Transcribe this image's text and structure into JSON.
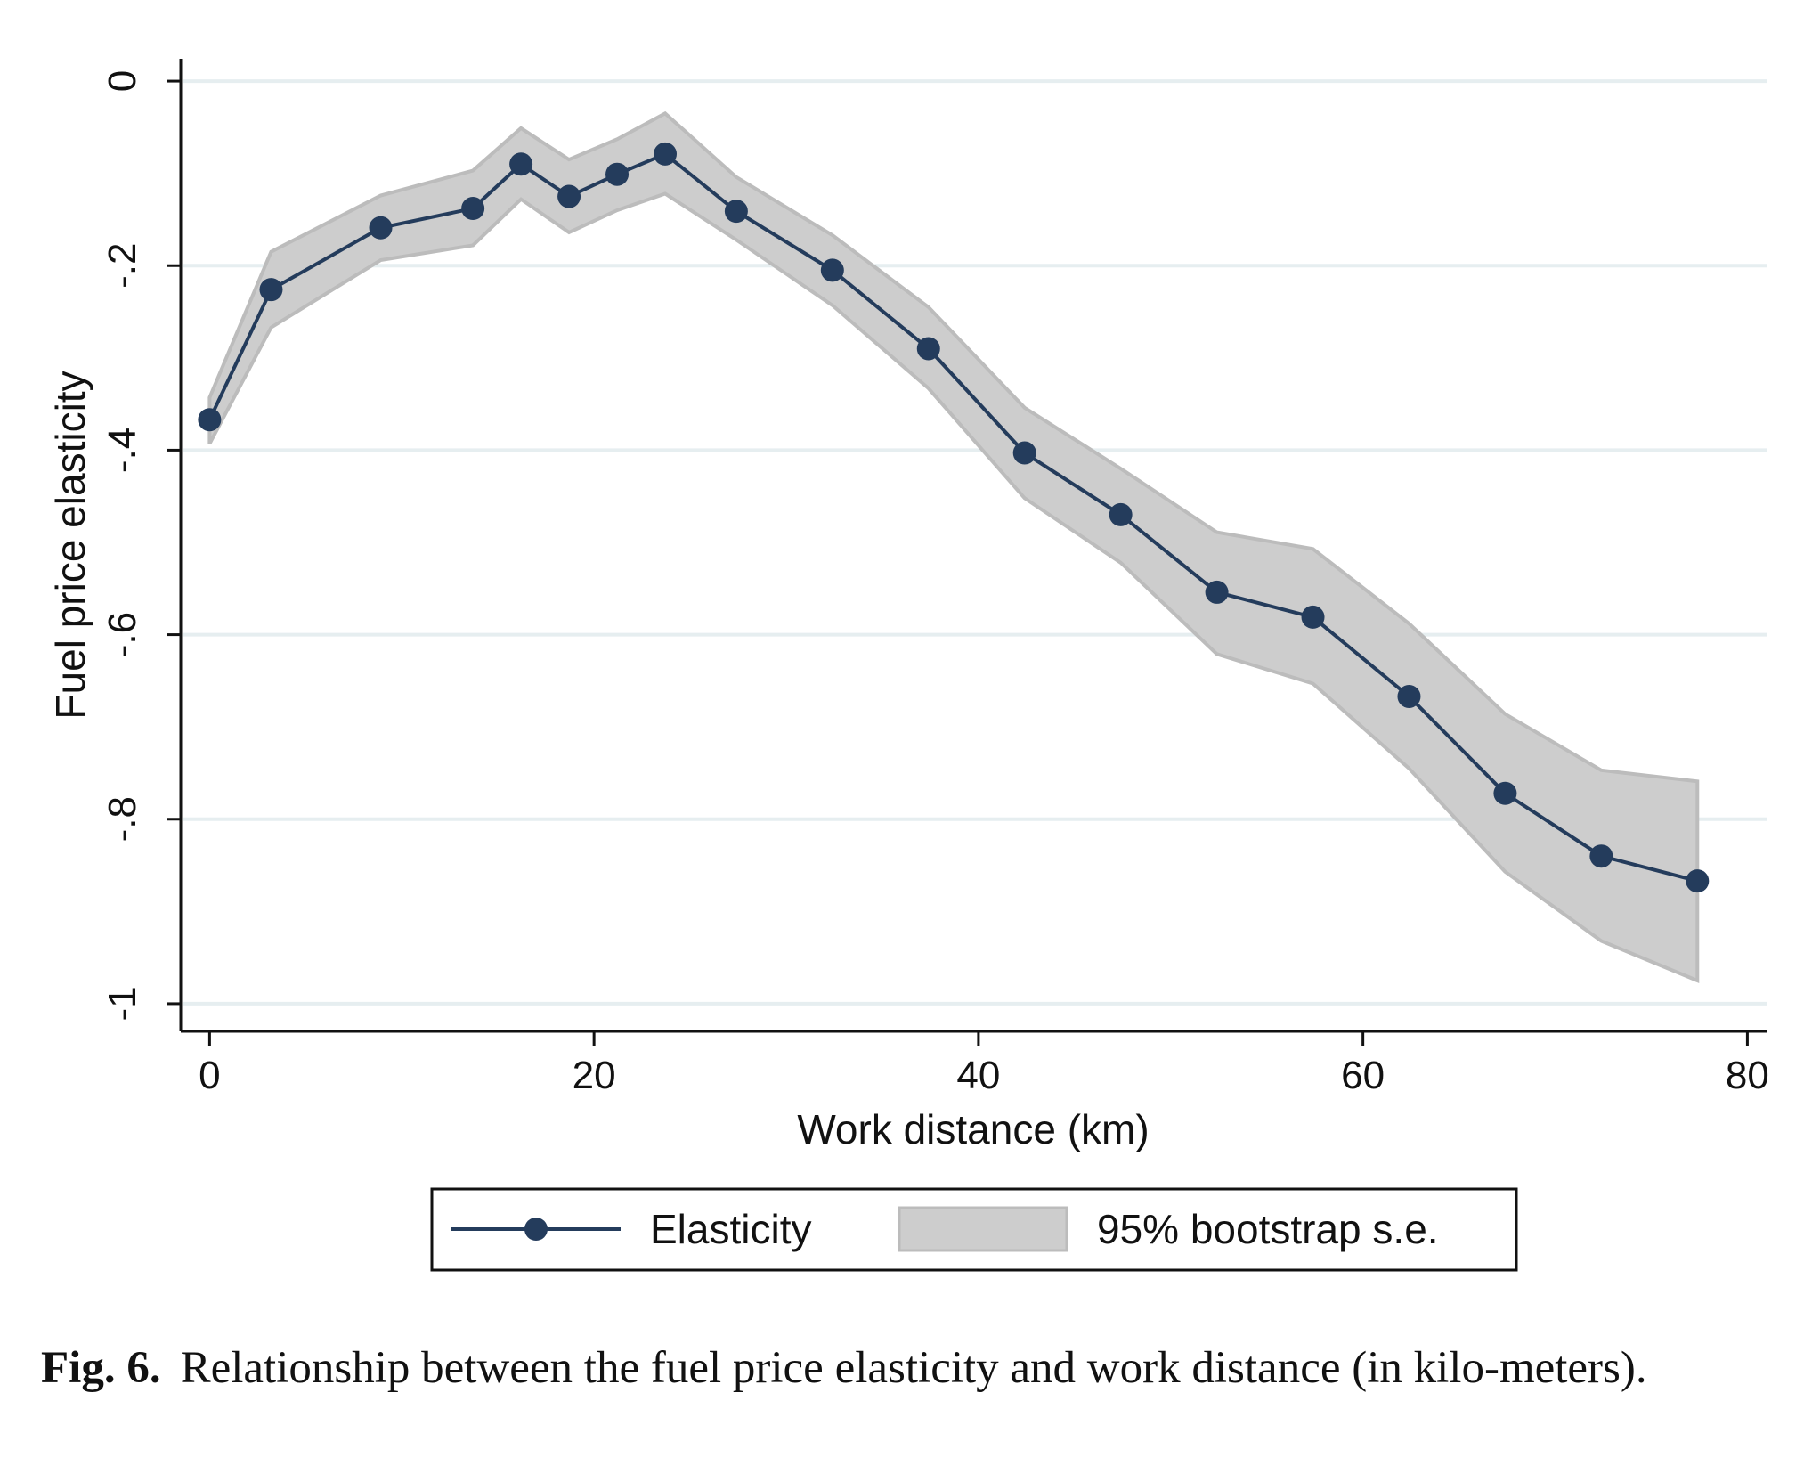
{
  "chart_data": {
    "type": "line",
    "xlabel": "Work distance (km)",
    "ylabel": "Fuel price elasticity",
    "xlim": [
      -1.5,
      81
    ],
    "ylim": [
      -1.03,
      0.03
    ],
    "x_ticks": [
      0,
      20,
      40,
      60,
      80
    ],
    "x_tick_labels": [
      "0",
      "20",
      "40",
      "60",
      "80"
    ],
    "y_ticks": [
      0,
      -0.2,
      -0.4,
      -0.6,
      -0.8,
      -1
    ],
    "y_tick_labels": [
      "0",
      "-.2",
      "-.4",
      "-.6",
      "-.8",
      "-1"
    ],
    "grid": "horizontal",
    "legend_position": "bottom",
    "series": [
      {
        "name": "Elasticity",
        "color": "#243c5c",
        "marker": "circle",
        "x": [
          0,
          3.2,
          8.9,
          13.7,
          16.2,
          18.7,
          21.2,
          23.7,
          27.4,
          32.4,
          37.4,
          42.4,
          47.4,
          52.4,
          57.4,
          62.4,
          67.4,
          72.4,
          77.4
        ],
        "y": [
          -0.367,
          -0.226,
          -0.159,
          -0.138,
          -0.09,
          -0.125,
          -0.101,
          -0.079,
          -0.141,
          -0.205,
          -0.29,
          -0.403,
          -0.47,
          -0.554,
          -0.581,
          -0.667,
          -0.772,
          -0.84,
          -0.867
        ]
      },
      {
        "name": "95% bootstrap s.e.",
        "type": "band",
        "color": "#c8c8c8",
        "x": [
          0,
          3.2,
          8.9,
          13.7,
          16.2,
          18.7,
          21.2,
          23.7,
          27.4,
          32.4,
          37.4,
          42.4,
          47.4,
          52.4,
          57.4,
          62.4,
          67.4,
          72.4,
          77.4
        ],
        "upper": [
          -0.343,
          -0.185,
          -0.124,
          -0.097,
          -0.051,
          -0.085,
          -0.063,
          -0.035,
          -0.104,
          -0.167,
          -0.245,
          -0.354,
          -0.42,
          -0.489,
          -0.507,
          -0.588,
          -0.686,
          -0.747,
          -0.759
        ],
        "lower": [
          -0.393,
          -0.267,
          -0.194,
          -0.178,
          -0.128,
          -0.164,
          -0.14,
          -0.122,
          -0.172,
          -0.243,
          -0.333,
          -0.452,
          -0.522,
          -0.621,
          -0.653,
          -0.745,
          -0.857,
          -0.932,
          -0.975
        ]
      }
    ]
  },
  "caption": {
    "label": "Fig. 6.",
    "text": "Relationship between the fuel price elasticity and work distance (in kilo-meters)."
  }
}
